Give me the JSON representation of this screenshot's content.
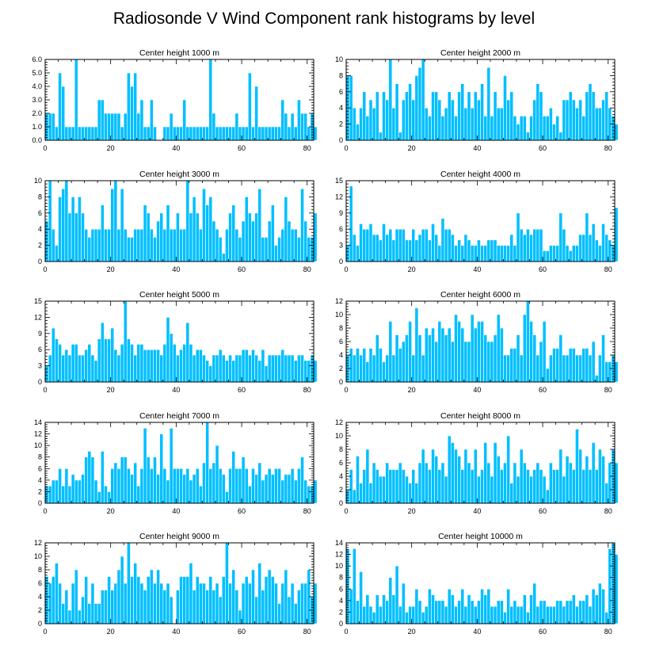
{
  "chart_data": {
    "title": "Radiosonde V Wind Component rank histograms by level",
    "bar_color": "#00bfff",
    "panels": [
      {
        "type": "bar",
        "title": "Center height 1000 m",
        "xlim": [
          0,
          82
        ],
        "x_ticks": [
          0,
          20,
          40,
          60,
          80
        ],
        "ylim": [
          0,
          6
        ],
        "y_ticks": [
          0.0,
          1.0,
          2.0,
          3.0,
          4.0,
          5.0,
          6.0
        ],
        "y_tick_labels": [
          "0.0",
          "1.0",
          "2.0",
          "3.0",
          "4.0",
          "5.0",
          "6.0"
        ],
        "values": [
          2,
          2,
          2,
          1,
          5,
          4,
          1,
          1,
          1,
          6,
          1,
          1,
          1,
          1,
          1,
          1,
          3,
          3,
          2,
          2,
          2,
          2,
          2,
          1,
          2,
          5,
          4,
          5,
          2,
          3,
          1,
          1,
          3,
          1,
          0,
          0,
          1,
          1,
          2,
          1,
          1,
          1,
          3,
          1,
          1,
          1,
          1,
          1,
          1,
          1,
          6,
          2,
          1,
          1,
          1,
          1,
          1,
          1,
          2,
          1,
          1,
          1,
          5,
          1,
          4,
          1,
          1,
          1,
          1,
          1,
          1,
          1,
          3,
          2,
          1,
          2,
          1,
          3,
          2,
          2,
          1,
          2,
          1
        ]
      },
      {
        "type": "bar",
        "title": "Center height 2000 m",
        "xlim": [
          0,
          82
        ],
        "x_ticks": [
          0,
          20,
          40,
          60,
          80
        ],
        "ylim": [
          0,
          10
        ],
        "y_ticks": [
          0,
          2,
          4,
          6,
          8,
          10
        ],
        "y_tick_labels": [
          "0",
          "2",
          "4",
          "6",
          "8",
          "10"
        ],
        "values": [
          8,
          8,
          4,
          2,
          4,
          6,
          3,
          5,
          4,
          6,
          1,
          6,
          5,
          10,
          4,
          7,
          1,
          5,
          6,
          7,
          5,
          8,
          9,
          10,
          4,
          3,
          6,
          6,
          5,
          3,
          4,
          6,
          5,
          3,
          6,
          7,
          4,
          6,
          4,
          6,
          5,
          7,
          3,
          9,
          3,
          6,
          4,
          4,
          8,
          5,
          6,
          3,
          2,
          3,
          3,
          1,
          3,
          5,
          7,
          6,
          3,
          3,
          4,
          2,
          3,
          1,
          5,
          5,
          6,
          5,
          4,
          5,
          3,
          6,
          7,
          6,
          4,
          4,
          5,
          6,
          4,
          3,
          2
        ]
      },
      {
        "type": "bar",
        "title": "Center height 3000 m",
        "xlim": [
          0,
          82
        ],
        "x_ticks": [
          0,
          20,
          40,
          60,
          80
        ],
        "ylim": [
          0,
          10
        ],
        "y_ticks": [
          0,
          2,
          4,
          6,
          8,
          10
        ],
        "y_tick_labels": [
          "0",
          "2",
          "4",
          "6",
          "8",
          "10"
        ],
        "values": [
          5,
          10,
          4,
          2,
          8,
          9,
          10,
          6,
          8,
          6,
          8,
          6,
          4,
          3,
          4,
          4,
          4,
          7,
          4,
          4,
          9,
          10,
          4,
          9,
          4,
          3,
          3,
          4,
          4,
          4,
          7,
          6,
          4,
          3,
          5,
          6,
          4,
          7,
          4,
          4,
          6,
          4,
          4,
          10,
          6,
          8,
          6,
          4,
          9,
          7,
          8,
          5,
          4,
          3,
          1,
          4,
          6,
          7,
          4,
          3,
          5,
          8,
          6,
          5,
          6,
          9,
          3,
          3,
          5,
          7,
          2,
          3,
          4,
          8,
          5,
          4,
          4,
          3,
          9,
          5,
          3,
          3,
          6
        ]
      },
      {
        "type": "bar",
        "title": "Center height 4000 m",
        "xlim": [
          0,
          82
        ],
        "x_ticks": [
          0,
          20,
          40,
          60,
          80
        ],
        "ylim": [
          0,
          15
        ],
        "y_ticks": [
          0,
          3,
          6,
          9,
          12,
          15
        ],
        "y_tick_labels": [
          "0",
          "3",
          "6",
          "9",
          "12",
          "15"
        ],
        "values": [
          3,
          14,
          5,
          3,
          7,
          6,
          6,
          7,
          5,
          5,
          4,
          7,
          5,
          6,
          4,
          6,
          6,
          6,
          4,
          4,
          6,
          4,
          5,
          6,
          6,
          4,
          7,
          5,
          3,
          8,
          6,
          6,
          5,
          3,
          4,
          3,
          5,
          4,
          3,
          3,
          4,
          3,
          3,
          4,
          4,
          4,
          3,
          3,
          3,
          3,
          5,
          3,
          9,
          6,
          5,
          6,
          5,
          6,
          6,
          6,
          2,
          2,
          3,
          3,
          3,
          9,
          6,
          3,
          2,
          3,
          3,
          5,
          5,
          9,
          5,
          7,
          4,
          3,
          7,
          5,
          4,
          3,
          10
        ]
      },
      {
        "type": "bar",
        "title": "Center height 5000 m",
        "xlim": [
          0,
          82
        ],
        "x_ticks": [
          0,
          20,
          40,
          60,
          80
        ],
        "ylim": [
          0,
          15
        ],
        "y_ticks": [
          0,
          3,
          6,
          9,
          12,
          15
        ],
        "y_tick_labels": [
          "0",
          "3",
          "6",
          "9",
          "12",
          "15"
        ],
        "values": [
          3,
          5,
          10,
          8,
          7,
          5,
          6,
          5,
          7,
          7,
          5,
          5,
          6,
          7,
          5,
          4,
          8,
          11,
          8,
          8,
          10,
          6,
          5,
          7,
          15,
          8,
          7,
          5,
          7,
          7,
          6,
          6,
          6,
          6,
          6,
          5,
          7,
          12,
          9,
          7,
          5,
          6,
          7,
          11,
          7,
          5,
          6,
          6,
          5,
          4,
          3,
          5,
          5,
          6,
          5,
          4,
          5,
          4,
          5,
          5,
          6,
          6,
          5,
          6,
          5,
          4,
          6,
          3,
          5,
          5,
          5,
          5,
          6,
          5,
          5,
          5,
          4,
          5,
          5,
          4,
          4,
          5,
          4
        ]
      },
      {
        "type": "bar",
        "title": "Center height 6000 m",
        "xlim": [
          0,
          82
        ],
        "x_ticks": [
          0,
          20,
          40,
          60,
          80
        ],
        "ylim": [
          0,
          12
        ],
        "y_ticks": [
          0,
          2,
          4,
          6,
          8,
          10,
          12
        ],
        "y_tick_labels": [
          "0",
          "2",
          "4",
          "6",
          "8",
          "10",
          "12"
        ],
        "values": [
          4,
          5,
          4,
          5,
          4,
          5,
          3,
          5,
          4,
          7,
          5,
          3,
          4,
          9,
          4,
          7,
          5,
          6,
          7,
          9,
          4,
          11,
          7,
          4,
          8,
          7,
          8,
          6,
          9,
          8,
          7,
          8,
          6,
          10,
          9,
          8,
          6,
          6,
          10,
          8,
          9,
          9,
          7,
          6,
          6,
          7,
          10,
          8,
          4,
          4,
          5,
          5,
          7,
          4,
          10,
          12,
          9,
          7,
          4,
          6,
          9,
          2,
          4,
          5,
          5,
          7,
          4,
          4,
          5,
          5,
          4,
          4,
          5,
          5,
          4,
          6,
          1,
          4,
          7,
          3,
          3,
          4,
          3
        ]
      },
      {
        "type": "bar",
        "title": "Center height 7000 m",
        "xlim": [
          0,
          82
        ],
        "x_ticks": [
          0,
          20,
          40,
          60,
          80
        ],
        "ylim": [
          0,
          14
        ],
        "y_ticks": [
          0,
          2,
          4,
          6,
          8,
          10,
          12,
          14
        ],
        "y_tick_labels": [
          "0",
          "2",
          "4",
          "6",
          "8",
          "10",
          "12",
          "14"
        ],
        "values": [
          3,
          3,
          4,
          4,
          6,
          3,
          6,
          3,
          5,
          4,
          4,
          5,
          8,
          9,
          8,
          4,
          2,
          9,
          3,
          2,
          6,
          7,
          6,
          8,
          8,
          6,
          5,
          7,
          3,
          6,
          13,
          8,
          6,
          8,
          5,
          12,
          6,
          4,
          13,
          6,
          6,
          6,
          5,
          6,
          4,
          5,
          6,
          3,
          7,
          14,
          6,
          7,
          10,
          6,
          5,
          2,
          6,
          9,
          6,
          6,
          8,
          6,
          3,
          6,
          5,
          7,
          4,
          5,
          6,
          5,
          6,
          6,
          4,
          5,
          5,
          6,
          4,
          6,
          8,
          4,
          3,
          3,
          4
        ]
      },
      {
        "type": "bar",
        "title": "Center height 8000 m",
        "xlim": [
          0,
          82
        ],
        "x_ticks": [
          0,
          20,
          40,
          60,
          80
        ],
        "ylim": [
          0,
          12
        ],
        "y_ticks": [
          0,
          2,
          4,
          6,
          8,
          10,
          12
        ],
        "y_tick_labels": [
          "0",
          "2",
          "4",
          "6",
          "8",
          "10",
          "12"
        ],
        "values": [
          2,
          5,
          2,
          7,
          3,
          5,
          8,
          3,
          6,
          5,
          4,
          4,
          6,
          5,
          5,
          5,
          6,
          5,
          4,
          3,
          5,
          3,
          6,
          8,
          6,
          5,
          8,
          7,
          5,
          6,
          4,
          10,
          9,
          8,
          7,
          5,
          8,
          6,
          5,
          8,
          4,
          5,
          9,
          6,
          4,
          9,
          7,
          5,
          6,
          10,
          3,
          6,
          4,
          8,
          6,
          5,
          4,
          5,
          6,
          5,
          4,
          2,
          6,
          5,
          5,
          8,
          4,
          7,
          6,
          5,
          11,
          8,
          5,
          7,
          5,
          9,
          5,
          8,
          7,
          3,
          6,
          8,
          6
        ]
      },
      {
        "type": "bar",
        "title": "Center height 9000 m",
        "xlim": [
          0,
          82
        ],
        "x_ticks": [
          0,
          20,
          40,
          60,
          80
        ],
        "ylim": [
          0,
          12
        ],
        "y_ticks": [
          0,
          2,
          4,
          6,
          8,
          10,
          12
        ],
        "y_tick_labels": [
          "0",
          "2",
          "4",
          "6",
          "8",
          "10",
          "12"
        ],
        "values": [
          7,
          6,
          7,
          9,
          6,
          3,
          5,
          2,
          6,
          8,
          2,
          4,
          7,
          3,
          6,
          3,
          3,
          5,
          5,
          7,
          5,
          6,
          8,
          10,
          6,
          12,
          7,
          9,
          7,
          6,
          5,
          7,
          8,
          6,
          8,
          6,
          5,
          6,
          4,
          0,
          5,
          7,
          7,
          7,
          9,
          5,
          7,
          6,
          6,
          5,
          7,
          5,
          6,
          4,
          7,
          12,
          6,
          8,
          5,
          2,
          6,
          7,
          6,
          8,
          4,
          9,
          5,
          7,
          8,
          7,
          6,
          3,
          6,
          8,
          4,
          6,
          3,
          5,
          6,
          6,
          8,
          4,
          6
        ]
      },
      {
        "type": "bar",
        "title": "Center height 10000 m",
        "xlim": [
          0,
          82
        ],
        "x_ticks": [
          0,
          20,
          40,
          60,
          80
        ],
        "ylim": [
          0,
          14
        ],
        "y_ticks": [
          0,
          2,
          4,
          6,
          8,
          10,
          12,
          14
        ],
        "y_tick_labels": [
          "0",
          "2",
          "4",
          "6",
          "8",
          "10",
          "12",
          "14"
        ],
        "values": [
          13,
          6,
          13,
          4,
          9,
          3,
          5,
          3,
          2,
          5,
          3,
          5,
          4,
          8,
          5,
          10,
          3,
          7,
          2,
          3,
          3,
          6,
          4,
          2,
          3,
          6,
          5,
          4,
          4,
          4,
          3,
          6,
          5,
          3,
          4,
          6,
          3,
          5,
          4,
          3,
          4,
          6,
          5,
          6,
          3,
          3,
          4,
          4,
          2,
          6,
          3,
          4,
          3,
          3,
          5,
          2,
          5,
          7,
          3,
          4,
          4,
          3,
          3,
          3,
          4,
          4,
          3,
          4,
          4,
          5,
          3,
          4,
          4,
          5,
          3,
          6,
          5,
          7,
          6,
          2,
          13,
          14,
          12
        ]
      }
    ]
  }
}
